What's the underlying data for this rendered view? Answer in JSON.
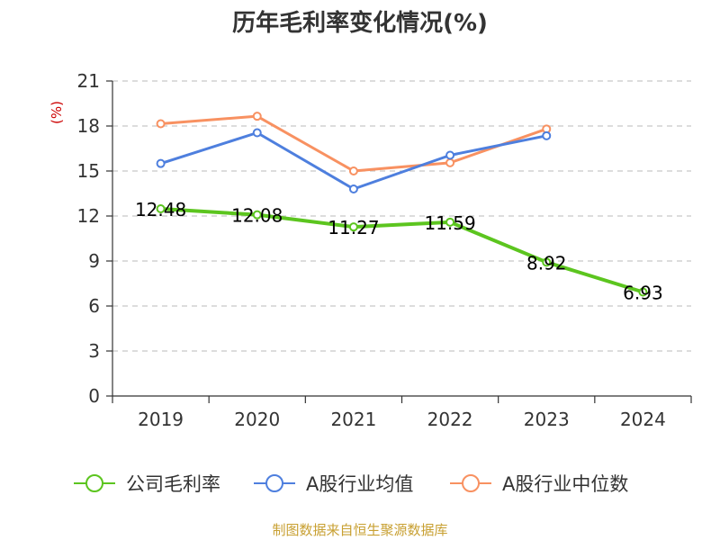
{
  "chart_data": {
    "type": "line",
    "title": "历年毛利率变化情况(%)",
    "ylabel": "(%)",
    "xlabel": "",
    "categories": [
      "2019",
      "2020",
      "2021",
      "2022",
      "2023",
      "2024"
    ],
    "ylim": [
      0,
      21
    ],
    "yticks": [
      0,
      3,
      6,
      9,
      12,
      15,
      18,
      21
    ],
    "grid": true,
    "legend_position": "bottom",
    "series": [
      {
        "name": "公司毛利率",
        "color": "#5cc51f",
        "values": [
          12.48,
          12.08,
          11.27,
          11.59,
          8.92,
          6.93
        ],
        "labels": [
          "12.48",
          "12.08",
          "11.27",
          "11.59",
          "8.92",
          "6.93"
        ]
      },
      {
        "name": "A股行业均值",
        "color": "#4e7fde",
        "values": [
          15.5,
          17.55,
          13.8,
          16.05,
          17.35,
          null
        ]
      },
      {
        "name": "A股行业中位数",
        "color": "#f89161",
        "values": [
          18.15,
          18.65,
          15.0,
          15.55,
          17.8,
          null
        ]
      }
    ],
    "unit_color": "#cc0000",
    "source": "制图数据来自恒生聚源数据库",
    "source_color": "#c8a032"
  }
}
